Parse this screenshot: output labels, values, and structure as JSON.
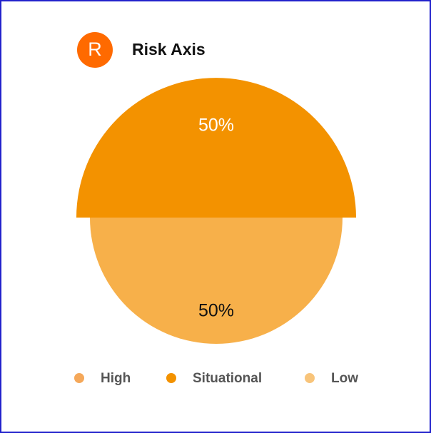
{
  "chart_data": {
    "type": "pie",
    "title": "Risk Axis",
    "icon_label": "R",
    "categories": [
      "High",
      "Situational",
      "Low"
    ],
    "values": [
      0,
      50,
      50
    ],
    "value_labels": [
      null,
      "50%",
      "50%"
    ],
    "colors": [
      "#f5a85a",
      "#f39200",
      "#f7b04a"
    ],
    "legend_colors": [
      "#f5a85a",
      "#f39200",
      "#f8c47a"
    ],
    "exploded": [
      false,
      true,
      false
    ],
    "legend": "bottom"
  }
}
